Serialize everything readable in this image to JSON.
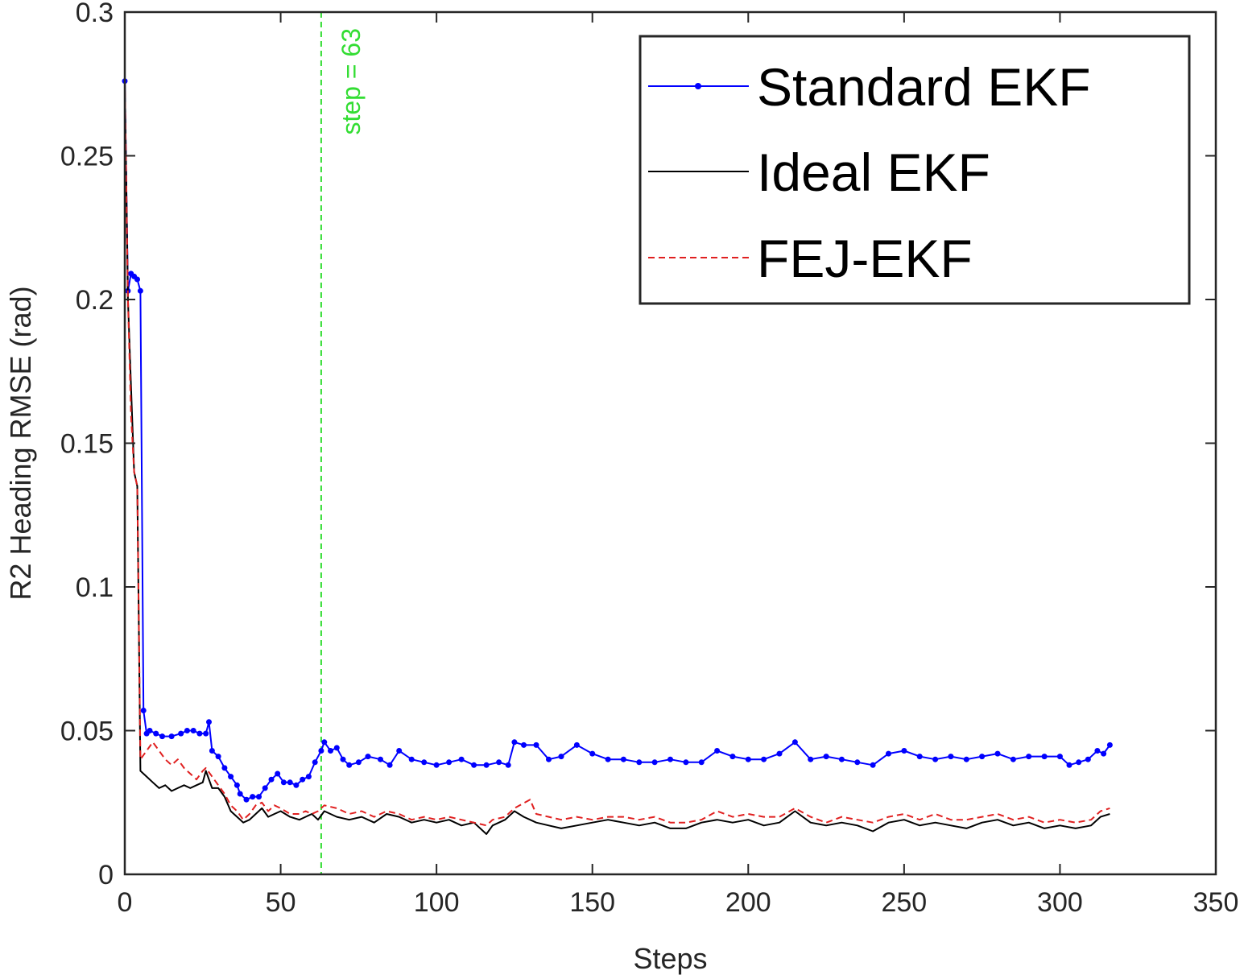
{
  "chart_data": {
    "type": "line",
    "xlabel": "Steps",
    "ylabel": "R2 Heading RMSE (rad)",
    "xlim": [
      0,
      350
    ],
    "ylim": [
      0,
      0.3
    ],
    "xticks": [
      0,
      50,
      100,
      150,
      200,
      250,
      300,
      350
    ],
    "xtick_labels": [
      "0",
      "50",
      "100",
      "150",
      "200",
      "250",
      "300",
      "350"
    ],
    "yticks": [
      0,
      0.05,
      0.1,
      0.15,
      0.2,
      0.25,
      0.3
    ],
    "ytick_labels": [
      "0",
      "0.05",
      "0.1",
      "0.15",
      "0.2",
      "0.25",
      "0.3"
    ],
    "grid": false,
    "legend_position": "top-right",
    "annotation": {
      "text": "step = 63",
      "x": 63,
      "color": "#33dd33"
    },
    "series": [
      {
        "name": "Standard EKF",
        "color": "#0000ff",
        "style": "solid-dots",
        "points": [
          [
            0,
            0.276
          ],
          [
            1,
            0.203
          ],
          [
            2,
            0.209
          ],
          [
            3,
            0.208
          ],
          [
            4,
            0.207
          ],
          [
            5,
            0.203
          ],
          [
            6,
            0.057
          ],
          [
            7,
            0.049
          ],
          [
            8,
            0.05
          ],
          [
            10,
            0.049
          ],
          [
            12,
            0.048
          ],
          [
            15,
            0.048
          ],
          [
            18,
            0.049
          ],
          [
            20,
            0.05
          ],
          [
            22,
            0.05
          ],
          [
            24,
            0.049
          ],
          [
            26,
            0.049
          ],
          [
            27,
            0.053
          ],
          [
            28,
            0.043
          ],
          [
            30,
            0.041
          ],
          [
            32,
            0.037
          ],
          [
            34,
            0.034
          ],
          [
            36,
            0.031
          ],
          [
            37,
            0.028
          ],
          [
            39,
            0.026
          ],
          [
            41,
            0.027
          ],
          [
            43,
            0.027
          ],
          [
            45,
            0.03
          ],
          [
            47,
            0.033
          ],
          [
            49,
            0.035
          ],
          [
            51,
            0.032
          ],
          [
            53,
            0.032
          ],
          [
            55,
            0.031
          ],
          [
            57,
            0.033
          ],
          [
            59,
            0.034
          ],
          [
            61,
            0.039
          ],
          [
            63,
            0.043
          ],
          [
            64,
            0.046
          ],
          [
            66,
            0.043
          ],
          [
            68,
            0.044
          ],
          [
            70,
            0.04
          ],
          [
            72,
            0.038
          ],
          [
            75,
            0.039
          ],
          [
            78,
            0.041
          ],
          [
            82,
            0.04
          ],
          [
            85,
            0.038
          ],
          [
            88,
            0.043
          ],
          [
            92,
            0.04
          ],
          [
            96,
            0.039
          ],
          [
            100,
            0.038
          ],
          [
            104,
            0.039
          ],
          [
            108,
            0.04
          ],
          [
            112,
            0.038
          ],
          [
            116,
            0.038
          ],
          [
            120,
            0.039
          ],
          [
            123,
            0.038
          ],
          [
            125,
            0.046
          ],
          [
            128,
            0.045
          ],
          [
            132,
            0.045
          ],
          [
            136,
            0.04
          ],
          [
            140,
            0.041
          ],
          [
            145,
            0.045
          ],
          [
            150,
            0.042
          ],
          [
            155,
            0.04
          ],
          [
            160,
            0.04
          ],
          [
            165,
            0.039
          ],
          [
            170,
            0.039
          ],
          [
            175,
            0.04
          ],
          [
            180,
            0.039
          ],
          [
            185,
            0.039
          ],
          [
            190,
            0.043
          ],
          [
            195,
            0.041
          ],
          [
            200,
            0.04
          ],
          [
            205,
            0.04
          ],
          [
            210,
            0.042
          ],
          [
            215,
            0.046
          ],
          [
            220,
            0.04
          ],
          [
            225,
            0.041
          ],
          [
            230,
            0.04
          ],
          [
            235,
            0.039
          ],
          [
            240,
            0.038
          ],
          [
            245,
            0.042
          ],
          [
            250,
            0.043
          ],
          [
            255,
            0.041
          ],
          [
            260,
            0.04
          ],
          [
            265,
            0.041
          ],
          [
            270,
            0.04
          ],
          [
            275,
            0.041
          ],
          [
            280,
            0.042
          ],
          [
            285,
            0.04
          ],
          [
            290,
            0.041
          ],
          [
            295,
            0.041
          ],
          [
            300,
            0.041
          ],
          [
            303,
            0.038
          ],
          [
            306,
            0.039
          ],
          [
            309,
            0.04
          ],
          [
            312,
            0.043
          ],
          [
            314,
            0.042
          ],
          [
            316,
            0.045
          ]
        ]
      },
      {
        "name": "Ideal EKF",
        "color": "#000000",
        "style": "solid",
        "points": [
          [
            0,
            0.276
          ],
          [
            1,
            0.2
          ],
          [
            2,
            0.17
          ],
          [
            3,
            0.14
          ],
          [
            4,
            0.135
          ],
          [
            5,
            0.036
          ],
          [
            7,
            0.034
          ],
          [
            9,
            0.032
          ],
          [
            11,
            0.03
          ],
          [
            13,
            0.031
          ],
          [
            15,
            0.029
          ],
          [
            17,
            0.03
          ],
          [
            19,
            0.031
          ],
          [
            21,
            0.03
          ],
          [
            23,
            0.031
          ],
          [
            25,
            0.032
          ],
          [
            26,
            0.036
          ],
          [
            28,
            0.03
          ],
          [
            30,
            0.03
          ],
          [
            32,
            0.027
          ],
          [
            34,
            0.022
          ],
          [
            36,
            0.02
          ],
          [
            38,
            0.018
          ],
          [
            40,
            0.019
          ],
          [
            42,
            0.021
          ],
          [
            44,
            0.023
          ],
          [
            46,
            0.02
          ],
          [
            48,
            0.021
          ],
          [
            50,
            0.022
          ],
          [
            53,
            0.02
          ],
          [
            56,
            0.019
          ],
          [
            58,
            0.02
          ],
          [
            60,
            0.021
          ],
          [
            62,
            0.019
          ],
          [
            64,
            0.022
          ],
          [
            68,
            0.02
          ],
          [
            72,
            0.019
          ],
          [
            76,
            0.02
          ],
          [
            80,
            0.018
          ],
          [
            84,
            0.021
          ],
          [
            88,
            0.02
          ],
          [
            92,
            0.018
          ],
          [
            96,
            0.019
          ],
          [
            100,
            0.018
          ],
          [
            104,
            0.019
          ],
          [
            108,
            0.017
          ],
          [
            112,
            0.018
          ],
          [
            116,
            0.014
          ],
          [
            118,
            0.017
          ],
          [
            122,
            0.019
          ],
          [
            125,
            0.022
          ],
          [
            128,
            0.02
          ],
          [
            132,
            0.018
          ],
          [
            136,
            0.017
          ],
          [
            140,
            0.016
          ],
          [
            145,
            0.017
          ],
          [
            150,
            0.018
          ],
          [
            155,
            0.019
          ],
          [
            160,
            0.018
          ],
          [
            165,
            0.017
          ],
          [
            170,
            0.018
          ],
          [
            175,
            0.016
          ],
          [
            180,
            0.016
          ],
          [
            185,
            0.018
          ],
          [
            190,
            0.019
          ],
          [
            195,
            0.018
          ],
          [
            200,
            0.019
          ],
          [
            205,
            0.017
          ],
          [
            210,
            0.018
          ],
          [
            215,
            0.022
          ],
          [
            220,
            0.018
          ],
          [
            225,
            0.017
          ],
          [
            230,
            0.018
          ],
          [
            235,
            0.017
          ],
          [
            240,
            0.015
          ],
          [
            245,
            0.018
          ],
          [
            250,
            0.019
          ],
          [
            255,
            0.017
          ],
          [
            260,
            0.018
          ],
          [
            265,
            0.017
          ],
          [
            270,
            0.016
          ],
          [
            275,
            0.018
          ],
          [
            280,
            0.019
          ],
          [
            285,
            0.017
          ],
          [
            290,
            0.018
          ],
          [
            295,
            0.016
          ],
          [
            300,
            0.017
          ],
          [
            305,
            0.016
          ],
          [
            310,
            0.017
          ],
          [
            313,
            0.02
          ],
          [
            316,
            0.021
          ]
        ]
      },
      {
        "name": "FEJ-EKF",
        "color": "#e02020",
        "style": "dashed",
        "points": [
          [
            0,
            0.276
          ],
          [
            1,
            0.2
          ],
          [
            2,
            0.16
          ],
          [
            3,
            0.14
          ],
          [
            4,
            0.135
          ],
          [
            5,
            0.04
          ],
          [
            7,
            0.043
          ],
          [
            9,
            0.046
          ],
          [
            11,
            0.043
          ],
          [
            13,
            0.04
          ],
          [
            15,
            0.038
          ],
          [
            17,
            0.04
          ],
          [
            19,
            0.037
          ],
          [
            21,
            0.035
          ],
          [
            23,
            0.033
          ],
          [
            25,
            0.036
          ],
          [
            26,
            0.037
          ],
          [
            28,
            0.034
          ],
          [
            30,
            0.031
          ],
          [
            32,
            0.028
          ],
          [
            34,
            0.024
          ],
          [
            36,
            0.022
          ],
          [
            38,
            0.019
          ],
          [
            40,
            0.021
          ],
          [
            42,
            0.024
          ],
          [
            44,
            0.025
          ],
          [
            46,
            0.022
          ],
          [
            48,
            0.024
          ],
          [
            50,
            0.023
          ],
          [
            53,
            0.021
          ],
          [
            56,
            0.021
          ],
          [
            58,
            0.022
          ],
          [
            60,
            0.021
          ],
          [
            62,
            0.022
          ],
          [
            64,
            0.024
          ],
          [
            68,
            0.023
          ],
          [
            72,
            0.021
          ],
          [
            76,
            0.022
          ],
          [
            80,
            0.02
          ],
          [
            84,
            0.022
          ],
          [
            88,
            0.021
          ],
          [
            92,
            0.019
          ],
          [
            96,
            0.02
          ],
          [
            100,
            0.019
          ],
          [
            104,
            0.02
          ],
          [
            108,
            0.019
          ],
          [
            112,
            0.018
          ],
          [
            116,
            0.017
          ],
          [
            118,
            0.019
          ],
          [
            122,
            0.02
          ],
          [
            125,
            0.023
          ],
          [
            130,
            0.026
          ],
          [
            132,
            0.021
          ],
          [
            136,
            0.02
          ],
          [
            140,
            0.019
          ],
          [
            145,
            0.02
          ],
          [
            150,
            0.019
          ],
          [
            155,
            0.02
          ],
          [
            160,
            0.02
          ],
          [
            165,
            0.019
          ],
          [
            170,
            0.02
          ],
          [
            175,
            0.018
          ],
          [
            180,
            0.018
          ],
          [
            185,
            0.019
          ],
          [
            190,
            0.022
          ],
          [
            195,
            0.02
          ],
          [
            200,
            0.021
          ],
          [
            205,
            0.02
          ],
          [
            210,
            0.02
          ],
          [
            215,
            0.023
          ],
          [
            220,
            0.02
          ],
          [
            225,
            0.018
          ],
          [
            230,
            0.02
          ],
          [
            235,
            0.019
          ],
          [
            240,
            0.018
          ],
          [
            245,
            0.02
          ],
          [
            250,
            0.021
          ],
          [
            255,
            0.019
          ],
          [
            260,
            0.021
          ],
          [
            265,
            0.019
          ],
          [
            270,
            0.019
          ],
          [
            275,
            0.02
          ],
          [
            280,
            0.021
          ],
          [
            285,
            0.019
          ],
          [
            290,
            0.02
          ],
          [
            295,
            0.018
          ],
          [
            300,
            0.019
          ],
          [
            305,
            0.018
          ],
          [
            310,
            0.019
          ],
          [
            313,
            0.022
          ],
          [
            316,
            0.023
          ]
        ]
      }
    ]
  }
}
